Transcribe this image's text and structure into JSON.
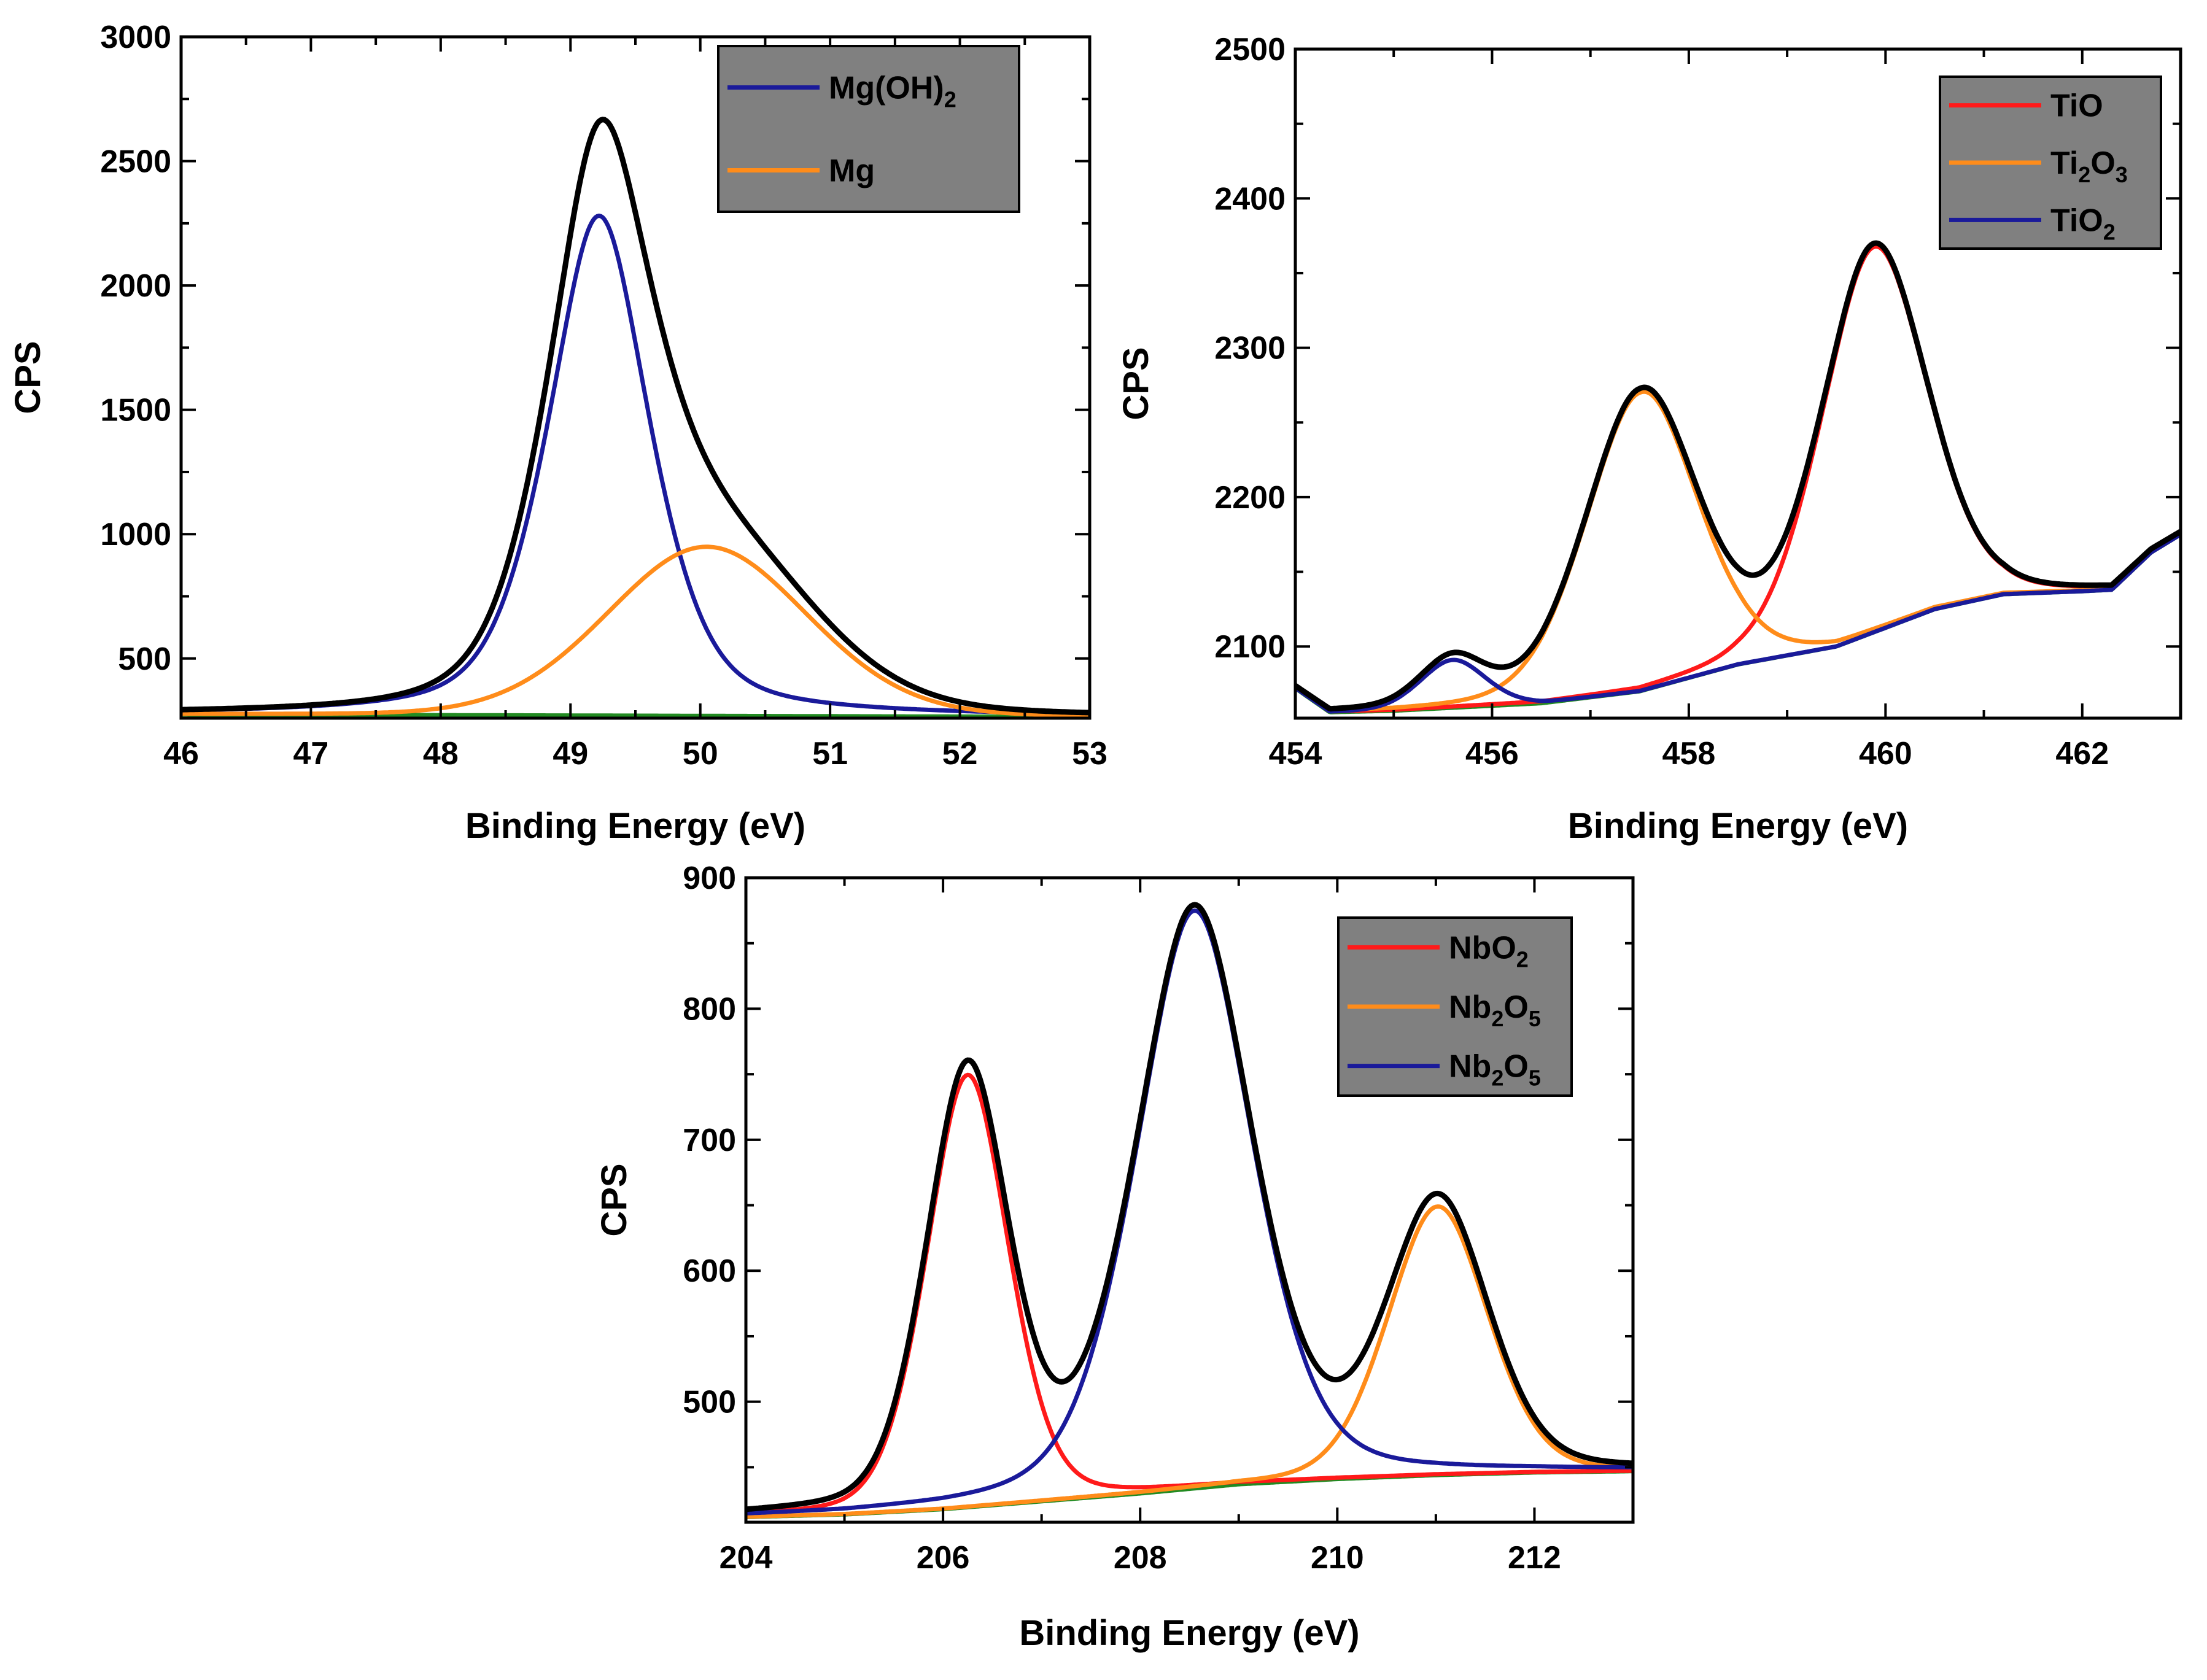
{
  "chart_data": [
    {
      "type": "line",
      "id": "mg",
      "xlabel": "Binding Energy (eV)",
      "ylabel": "CPS",
      "xlim": [
        46,
        53
      ],
      "ylim": [
        260,
        3000
      ],
      "xticks": [
        46,
        47,
        48,
        49,
        50,
        51,
        52,
        53
      ],
      "yticks": [
        500,
        1000,
        1500,
        2000,
        2500,
        3000
      ],
      "legend": {
        "position": "top-right",
        "items": [
          {
            "label": "Mg(OH)",
            "sub": "2",
            "tail": "",
            "color": "#1a1a9a"
          },
          {
            "label": "Mg",
            "sub": "",
            "tail": "",
            "color": "#ff8c1a"
          }
        ]
      },
      "baseline": [
        [
          46,
          275
        ],
        [
          53,
          265
        ]
      ],
      "peaks": [
        {
          "name": "Mg(OH)2",
          "color": "#1a1a9a",
          "center": 49.22,
          "amp": 2010,
          "width": 0.42,
          "eta": 0.5
        },
        {
          "name": "Mg",
          "color": "#ff8c1a",
          "center": 50.05,
          "amp": 680,
          "width": 0.78,
          "eta": 0.1
        }
      ],
      "baseline_color": "#228b22",
      "envelope_color": "#000000"
    },
    {
      "type": "line",
      "id": "ti",
      "xlabel": "Binding Energy (eV)",
      "ylabel": "CPS",
      "xlim": [
        454,
        463
      ],
      "ylim": [
        2052,
        2500
      ],
      "xticks": [
        454,
        456,
        458,
        460,
        462
      ],
      "yticks": [
        2100,
        2200,
        2300,
        2400,
        2500
      ],
      "legend": {
        "position": "top-right",
        "items": [
          {
            "label": "TiO",
            "sub": "",
            "tail": "",
            "color": "#ff1a1a"
          },
          {
            "label": "Ti",
            "sub": "2",
            "tail": "O",
            "tailsub": "3",
            "color": "#ff8c1a"
          },
          {
            "label": "TiO",
            "sub": "2",
            "tail": "",
            "color": "#1a1a9a"
          }
        ]
      },
      "baseline": [
        [
          454,
          2072
        ],
        [
          454.35,
          2056
        ],
        [
          455.0,
          2057
        ],
        [
          456.5,
          2062
        ],
        [
          457.5,
          2070
        ],
        [
          458.5,
          2088
        ],
        [
          459.5,
          2100
        ],
        [
          460.5,
          2125
        ],
        [
          461.2,
          2135
        ],
        [
          462.0,
          2137
        ],
        [
          462.3,
          2138
        ],
        [
          462.7,
          2163
        ],
        [
          463,
          2175
        ]
      ],
      "peaks": [
        {
          "name": "TiO",
          "color": "#ff1a1a",
          "center": 459.88,
          "amp": 258,
          "width": 0.55,
          "eta": 0.2
        },
        {
          "name": "Ti2O3",
          "color": "#ff8c1a",
          "center": 457.52,
          "amp": 200,
          "width": 0.58,
          "eta": 0.2
        },
        {
          "name": "TiO2",
          "color": "#1a1a9a",
          "center": 455.6,
          "amp": 32,
          "width": 0.34,
          "eta": 0.2
        }
      ],
      "baseline_color": "#228b22",
      "envelope_color": "#000000"
    },
    {
      "type": "line",
      "id": "nb",
      "xlabel": "Binding Energy (eV)",
      "ylabel": "CPS",
      "xlim": [
        204,
        213
      ],
      "ylim": [
        408,
        900
      ],
      "xticks": [
        204,
        206,
        208,
        210,
        212
      ],
      "yticks": [
        500,
        600,
        700,
        800,
        900
      ],
      "legend": {
        "position": "top-right",
        "items": [
          {
            "label": "NbO",
            "sub": "2",
            "tail": "",
            "color": "#ff1a1a"
          },
          {
            "label": "Nb",
            "sub": "2",
            "tail": "O",
            "tailsub": "5",
            "color": "#ff8c1a"
          },
          {
            "label": "Nb",
            "sub": "2",
            "tail": "O",
            "tailsub": "5",
            "color": "#1a1a9a"
          }
        ]
      },
      "baseline": [
        [
          204,
          412
        ],
        [
          205,
          414
        ],
        [
          206,
          418
        ],
        [
          207,
          424
        ],
        [
          208,
          430
        ],
        [
          209,
          437
        ],
        [
          210,
          441
        ],
        [
          211,
          444
        ],
        [
          212,
          446
        ],
        [
          213,
          447
        ]
      ],
      "peaks": [
        {
          "name": "NbO2",
          "color": "#ff1a1a",
          "center": 206.25,
          "amp": 330,
          "width": 0.43,
          "eta": 0.25
        },
        {
          "name": "Nb2O5 (1)",
          "color": "#ff8c1a",
          "center": 211.02,
          "amp": 205,
          "width": 0.52,
          "eta": 0.2
        },
        {
          "name": "Nb2O5 (2)",
          "color": "#1a1a9a",
          "center": 208.55,
          "amp": 441,
          "width": 0.62,
          "eta": 0.35
        }
      ],
      "baseline_color": "#228b22",
      "envelope_color": "#000000"
    }
  ]
}
